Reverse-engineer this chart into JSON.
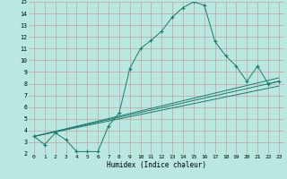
{
  "xlabel": "Humidex (Indice chaleur)",
  "xlim": [
    -0.5,
    23.5
  ],
  "ylim": [
    2,
    15
  ],
  "xticks": [
    0,
    1,
    2,
    3,
    4,
    5,
    6,
    7,
    8,
    9,
    10,
    11,
    12,
    13,
    14,
    15,
    16,
    17,
    18,
    19,
    20,
    21,
    22,
    23
  ],
  "yticks": [
    2,
    3,
    4,
    5,
    6,
    7,
    8,
    9,
    10,
    11,
    12,
    13,
    14,
    15
  ],
  "bg_color": "#b8e8e0",
  "grid_color": "#c8a0a0",
  "line_color": "#1a7a6e",
  "line1": {
    "x": [
      0,
      1,
      2,
      3,
      4,
      5,
      6,
      7,
      8,
      9,
      10,
      11,
      12,
      13,
      14,
      15,
      16,
      17,
      18,
      19,
      20,
      21,
      22,
      23
    ],
    "y": [
      3.5,
      2.8,
      3.8,
      3.2,
      2.2,
      2.2,
      2.2,
      4.4,
      5.5,
      9.3,
      11.0,
      11.7,
      12.5,
      13.7,
      14.5,
      15.0,
      14.7,
      11.6,
      10.4,
      9.5,
      8.2,
      9.5,
      8.0,
      8.2
    ]
  },
  "line2": {
    "x": [
      0,
      23
    ],
    "y": [
      3.5,
      8.5
    ]
  },
  "line3": {
    "x": [
      0,
      23
    ],
    "y": [
      3.5,
      7.8
    ]
  },
  "line4": {
    "x": [
      0,
      23
    ],
    "y": [
      3.5,
      8.2
    ]
  }
}
